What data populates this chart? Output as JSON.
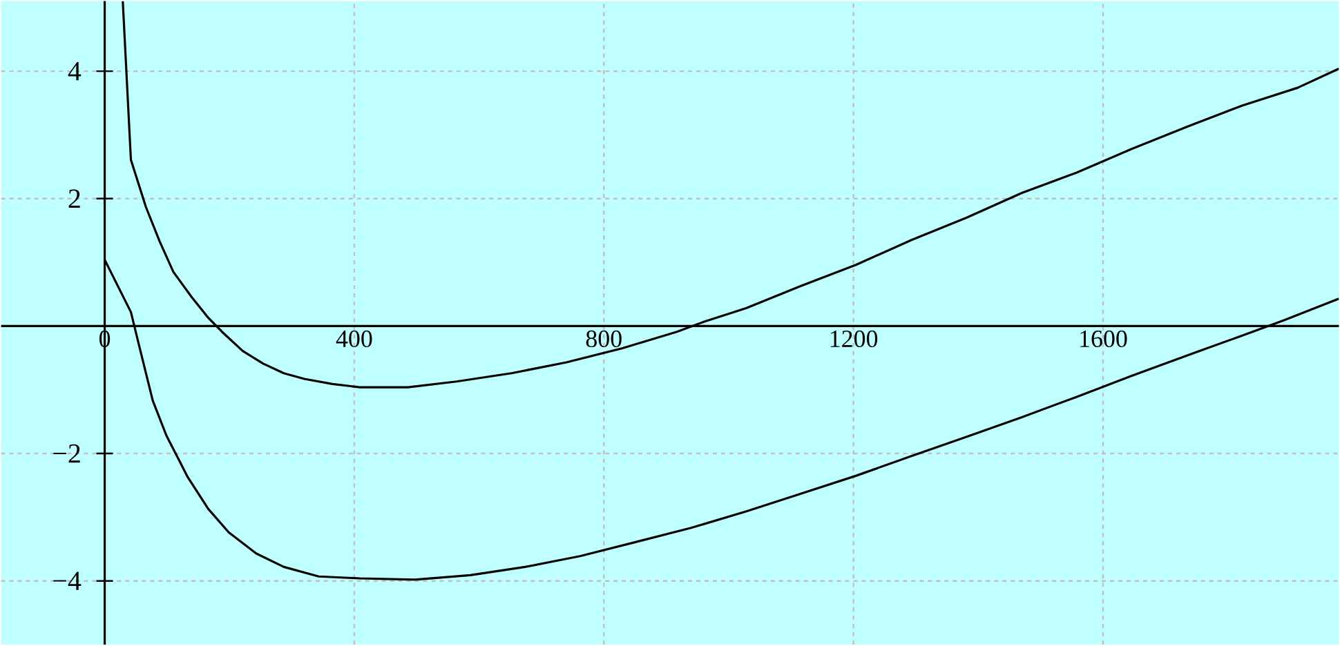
{
  "chart_data": {
    "type": "line",
    "xlim": [
      -166,
      1978
    ],
    "ylim": [
      -5,
      5.1
    ],
    "xticks": [
      0,
      400,
      800,
      1200,
      1600
    ],
    "yticks": [
      {
        "value": -4,
        "label": "−4"
      },
      {
        "value": -2,
        "label": "−2"
      },
      2,
      4
    ],
    "grid": true,
    "marker": "none",
    "line_style": "solid",
    "series": [
      {
        "color": "#000000",
        "x": [
          29,
          42,
          66,
          88,
          110,
          139,
          166,
          188,
          221,
          254,
          287,
          320,
          365,
          409,
          486,
          564,
          652,
          740,
          829,
          917,
          961,
          1028,
          1116,
          1204,
          1293,
          1381,
          1470,
          1558,
          1646,
          1735,
          1823,
          1912,
          1978
        ],
        "values": [
          5.1,
          2.61,
          1.87,
          1.33,
          0.85,
          0.46,
          0.13,
          -0.09,
          -0.39,
          -0.59,
          -0.74,
          -0.83,
          -0.91,
          -0.96,
          -0.96,
          -0.87,
          -0.74,
          -0.57,
          -0.35,
          -0.09,
          0.07,
          0.28,
          0.63,
          0.96,
          1.35,
          1.7,
          2.09,
          2.41,
          2.78,
          3.13,
          3.46,
          3.74,
          4.04
        ]
      },
      {
        "color": "#000000",
        "x": [
          0,
          42,
          55,
          77,
          99,
          133,
          166,
          199,
          243,
          287,
          343,
          409,
          497,
          586,
          674,
          762,
          851,
          939,
          1028,
          1116,
          1204,
          1293,
          1381,
          1470,
          1558,
          1646,
          1735,
          1823,
          1890,
          1978
        ],
        "values": [
          1.04,
          0.22,
          -0.3,
          -1.17,
          -1.72,
          -2.37,
          -2.87,
          -3.24,
          -3.57,
          -3.78,
          -3.93,
          -3.96,
          -3.98,
          -3.91,
          -3.78,
          -3.61,
          -3.39,
          -3.17,
          -2.91,
          -2.63,
          -2.35,
          -2.04,
          -1.74,
          -1.43,
          -1.11,
          -0.78,
          -0.46,
          -0.15,
          0.09,
          0.43
        ]
      }
    ]
  }
}
